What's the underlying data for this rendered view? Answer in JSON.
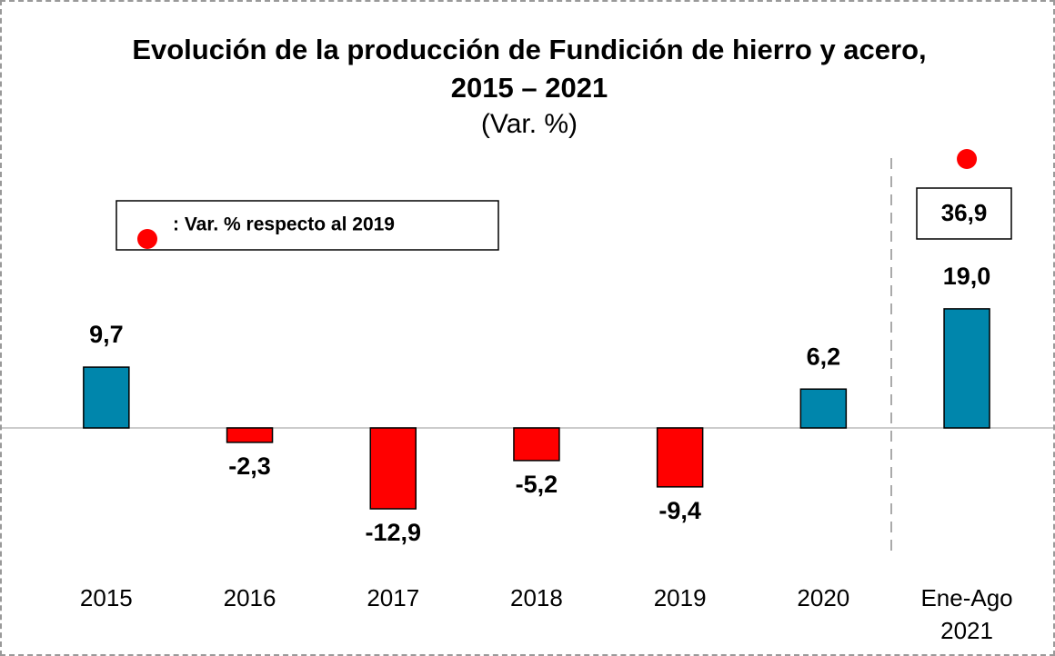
{
  "chart_data": {
    "type": "bar",
    "title": "Evolución de la producción de Fundición de hierro y acero, 2015 – 2021",
    "subtitle": "(Var. %)",
    "categories": [
      "2015",
      "2016",
      "2017",
      "2018",
      "2019",
      "2020",
      "Ene-Ago 2021"
    ],
    "values": [
      9.7,
      -2.3,
      -12.9,
      -5.2,
      -9.4,
      6.2,
      19.0
    ],
    "value_labels": [
      "9,7",
      "-2,3",
      "-12,9",
      "-5,2",
      "-9,4",
      "6,2",
      "19,0"
    ],
    "colors": [
      "#0086ac",
      "#ff0000",
      "#ff0000",
      "#ff0000",
      "#ff0000",
      "#0086ac",
      "#0086ac"
    ],
    "ylim": [
      -20,
      30
    ],
    "legend": {
      "label": ": Var. % respecto al 2019",
      "color": "#ff0000"
    },
    "annotation": {
      "label": "36,9",
      "value": 36.9
    }
  }
}
